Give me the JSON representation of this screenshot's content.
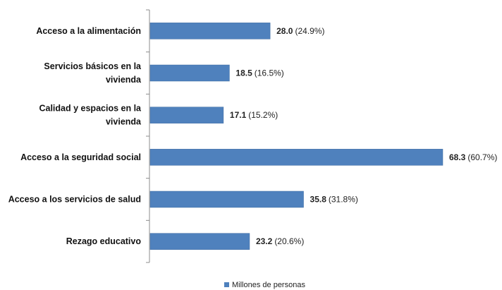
{
  "chart_data": {
    "type": "bar",
    "orientation": "horizontal",
    "categories": [
      [
        "Acceso a la alimentación"
      ],
      [
        "Servicios básicos en la",
        "vivienda"
      ],
      [
        "Calidad y espacios en la",
        "vivienda"
      ],
      [
        "Acceso a la seguridad social"
      ],
      [
        "Acceso a los servicios de salud"
      ],
      [
        "Rezago educativo"
      ]
    ],
    "series": [
      {
        "name": "Millones de personas",
        "color": "#4F81BD",
        "values": [
          28.0,
          18.5,
          17.1,
          68.3,
          35.8,
          23.2
        ],
        "value_labels": [
          "28.0",
          "18.5",
          "17.1",
          "68.3",
          "35.8",
          "23.2"
        ],
        "percent_labels": [
          "(24.9%)",
          "(16.5%)",
          "(15.2%)",
          "(60.7%)",
          "(31.8%)",
          "(20.6%)"
        ]
      }
    ],
    "title": "",
    "xlabel": "",
    "ylabel": "",
    "xlim": [
      0,
      70
    ],
    "grid": false,
    "legend": {
      "position": "bottom-center"
    }
  }
}
